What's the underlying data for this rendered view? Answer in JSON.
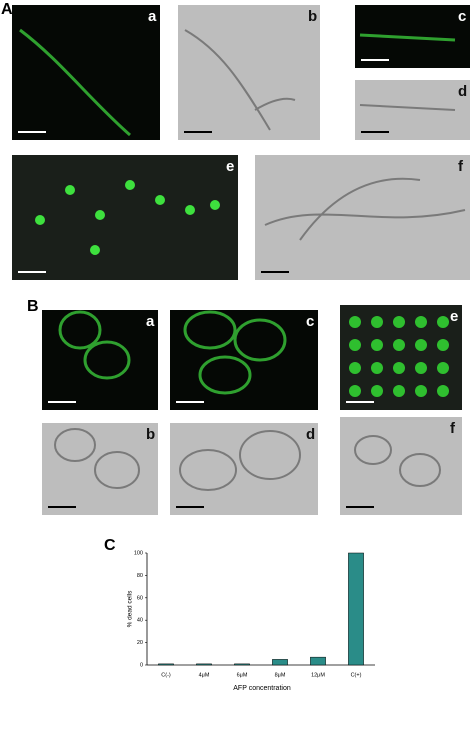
{
  "figure": {
    "A": {
      "label": "A",
      "images": [
        "a",
        "b",
        "c",
        "d",
        "e",
        "f"
      ]
    },
    "B": {
      "label": "B",
      "images": [
        "a",
        "c",
        "e",
        "b",
        "d",
        "f"
      ]
    },
    "C": {
      "label": "C"
    }
  },
  "chart_data": {
    "type": "bar",
    "categories": [
      "C(-)",
      "4μM",
      "6μM",
      "8μM",
      "12μM",
      "C(+)"
    ],
    "values": [
      1,
      1,
      1,
      5,
      7,
      100
    ],
    "color": "#2a8c88",
    "y_label": "% dead cells",
    "x_label": "AFP concentration",
    "ylim": [
      0,
      100
    ],
    "yticks": [
      0,
      20,
      40,
      60,
      80,
      100
    ],
    "grid": false
  }
}
